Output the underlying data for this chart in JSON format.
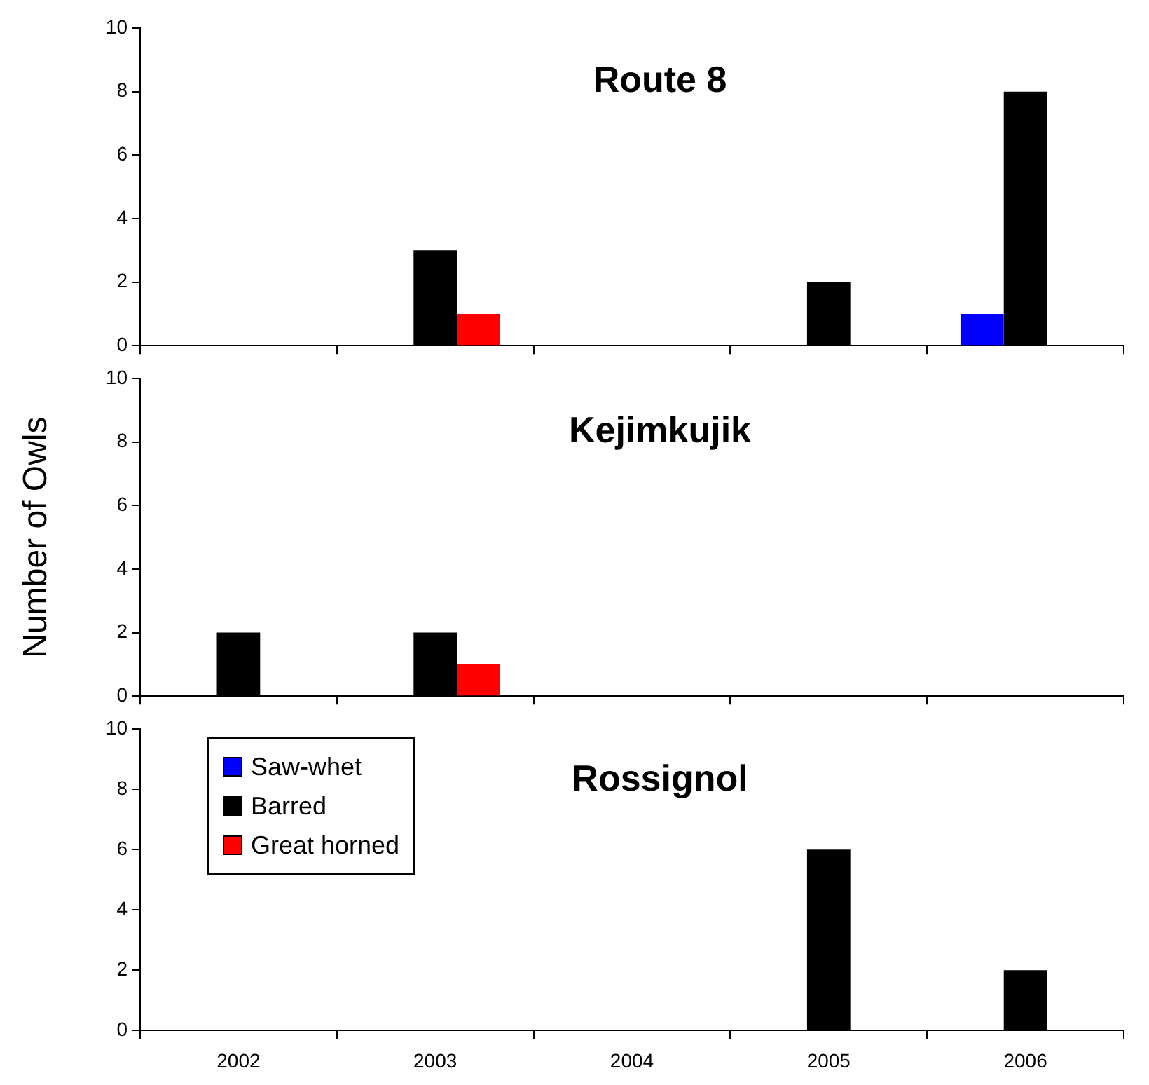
{
  "chart_data": [
    {
      "type": "bar",
      "title": "Route 8",
      "categories": [
        "2002",
        "2003",
        "2004",
        "2005",
        "2006"
      ],
      "series": [
        {
          "color": "#0000ff",
          "values": [
            0,
            0,
            0,
            0,
            1
          ]
        },
        {
          "color": "#000000",
          "values": [
            0,
            3,
            0,
            2,
            8
          ]
        },
        {
          "color": "#ff0000",
          "values": [
            0,
            1,
            0,
            0,
            0
          ]
        }
      ],
      "ylim": [
        0,
        10
      ],
      "yticks": [
        0,
        2,
        4,
        6,
        8,
        10
      ],
      "grid": false,
      "legend": false,
      "tick_labels": "y"
    },
    {
      "type": "bar",
      "title": "Kejimkujik",
      "ylabel": "Number of Owls",
      "categories": [
        "2002",
        "2003",
        "2004",
        "2005",
        "2006"
      ],
      "series": [
        {
          "color": "#0000ff",
          "values": [
            0,
            0,
            0,
            0,
            0
          ]
        },
        {
          "color": "#000000",
          "values": [
            2,
            2,
            0,
            0,
            0
          ]
        },
        {
          "color": "#ff0000",
          "values": [
            0,
            1,
            0,
            0,
            0
          ]
        }
      ],
      "ylim": [
        0,
        10
      ],
      "yticks": [
        0,
        2,
        4,
        6,
        8,
        10
      ],
      "grid": false,
      "legend": false,
      "tick_labels": "y"
    },
    {
      "type": "bar",
      "title": "Rossignol",
      "categories": [
        "2002",
        "2003",
        "2004",
        "2005",
        "2006"
      ],
      "series": [
        {
          "name": "Saw-whet",
          "color": "#0000ff",
          "values": [
            0,
            0,
            0,
            0,
            0
          ]
        },
        {
          "name": "Barred",
          "color": "#000000",
          "values": [
            0,
            0,
            0,
            6,
            2
          ]
        },
        {
          "name": "Great horned",
          "color": "#ff0000",
          "values": [
            0,
            0,
            0,
            0,
            0
          ]
        }
      ],
      "ylim": [
        0,
        10
      ],
      "yticks": [
        0,
        2,
        4,
        6,
        8,
        10
      ],
      "grid": false,
      "legend": "top left"
    }
  ]
}
